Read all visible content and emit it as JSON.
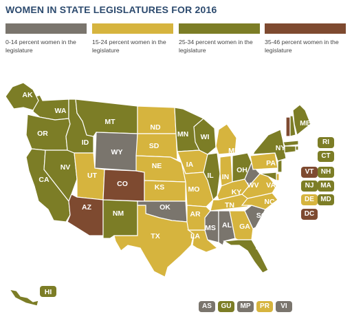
{
  "title": "WOMEN IN STATE LEGISLATURES FOR 2016",
  "colors": {
    "gray": "#7a756d",
    "yellow": "#d6b43e",
    "olive": "#7c7d26",
    "brown": "#7e4a30",
    "water": "#ffffff"
  },
  "legend": [
    {
      "key": "gray",
      "text": "0-14 percent women in the legislature"
    },
    {
      "key": "yellow",
      "text": "15-24 percent women in the legislature"
    },
    {
      "key": "olive",
      "text": "25-34 percent women in the legislature"
    },
    {
      "key": "brown",
      "text": "35-46 percent women in the legislature"
    }
  ],
  "states": {
    "AK": "olive",
    "HI": "olive",
    "WA": "olive",
    "OR": "olive",
    "CA": "olive",
    "NV": "olive",
    "ID": "olive",
    "MT": "olive",
    "WY": "gray",
    "UT": "yellow",
    "CO": "brown",
    "AZ": "brown",
    "NM": "olive",
    "ND": "yellow",
    "SD": "yellow",
    "NE": "yellow",
    "KS": "yellow",
    "OK": "gray",
    "TX": "yellow",
    "MN": "olive",
    "IA": "yellow",
    "MO": "yellow",
    "AR": "yellow",
    "LA": "yellow",
    "WI": "olive",
    "IL": "olive",
    "MI": "yellow",
    "IN": "yellow",
    "OH": "olive",
    "KY": "yellow",
    "TN": "yellow",
    "MS": "gray",
    "AL": "gray",
    "GA": "yellow",
    "FL": "olive",
    "SC": "gray",
    "NC": "yellow",
    "VA": "yellow",
    "WV": "gray",
    "PA": "yellow",
    "NY": "olive",
    "ME": "olive",
    "VT": "brown",
    "NH": "olive",
    "MA": "olive",
    "RI": "olive",
    "CT": "olive",
    "NJ": "olive",
    "DE": "yellow",
    "MD": "olive",
    "DC": "brown"
  },
  "northeast_labels": [
    {
      "label": "RI",
      "key": "olive"
    },
    {
      "label": "CT",
      "key": "olive"
    },
    {
      "label": "VT",
      "key": "brown"
    },
    {
      "label": "NH",
      "key": "olive"
    },
    {
      "label": "NJ",
      "key": "olive"
    },
    {
      "label": "MA",
      "key": "olive"
    },
    {
      "label": "DE",
      "key": "yellow"
    },
    {
      "label": "MD",
      "key": "olive"
    },
    {
      "label": "DC",
      "key": "brown"
    }
  ],
  "territories": [
    {
      "label": "AS",
      "key": "gray"
    },
    {
      "label": "GU",
      "key": "olive"
    },
    {
      "label": "MP",
      "key": "gray"
    },
    {
      "label": "PR",
      "key": "yellow"
    },
    {
      "label": "VI",
      "key": "gray"
    }
  ]
}
